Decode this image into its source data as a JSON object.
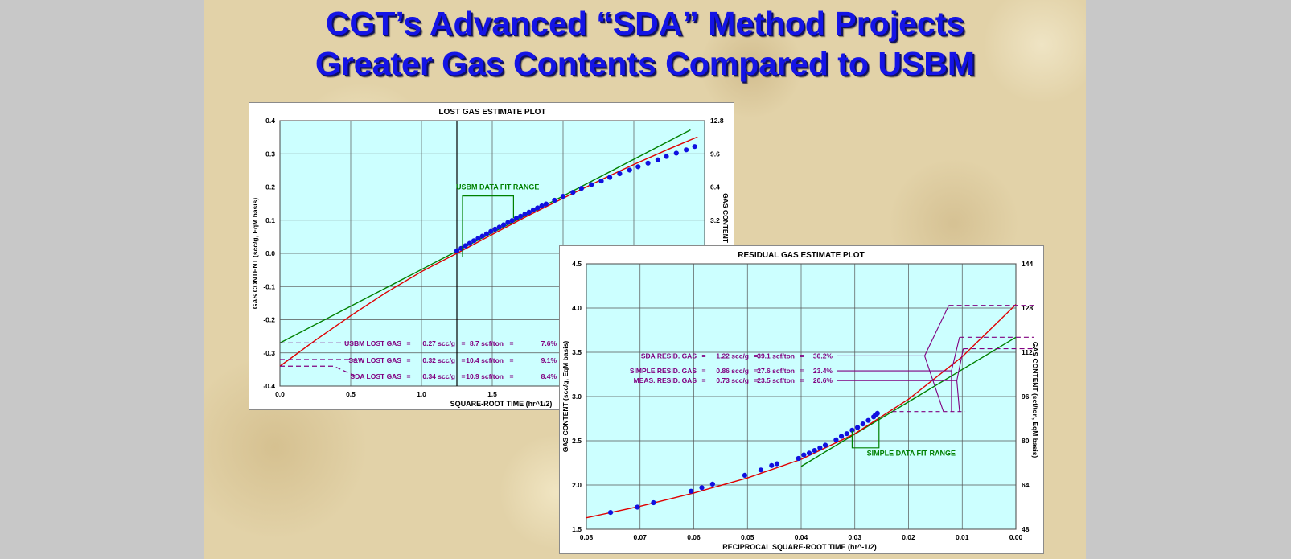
{
  "slide": {
    "title_line1": "CGT’s Advanced “SDA” Method Projects",
    "title_line2": "Greater Gas Contents Compared to USBM"
  },
  "colors": {
    "plot_bg": "#ccffff",
    "data": "#1010e0",
    "red_fit": "#e00000",
    "green_fit": "#008000",
    "annot": "#800080",
    "title": "#1414e6"
  },
  "chart_data": [
    {
      "type": "scatter",
      "title": "LOST GAS ESTIMATE PLOT",
      "xlabel": "SQUARE-ROOT TIME (hr^1/2)",
      "ylabel": "GAS CONTENT (scc/g, EqM basis)",
      "y2label": "GAS CONTENT",
      "xlim": [
        0,
        3.0
      ],
      "ylim": [
        -0.4,
        0.4
      ],
      "y2lim": [
        -12.8,
        12.8
      ],
      "x_ticks": [
        "0.0",
        "0.5",
        "1.0",
        "1.5"
      ],
      "y_ticks": [
        "-0.4",
        "-0.3",
        "-0.2",
        "-0.1",
        "0.0",
        "0.1",
        "0.2",
        "0.3",
        "0.4"
      ],
      "y2_ticks": [
        "3.2",
        "6.4",
        "9.6",
        "12.8"
      ],
      "grid": true,
      "points": {
        "x": [
          1.25,
          1.28,
          1.31,
          1.34,
          1.37,
          1.4,
          1.43,
          1.46,
          1.49,
          1.52,
          1.55,
          1.58,
          1.61,
          1.64,
          1.67,
          1.7,
          1.73,
          1.76,
          1.79,
          1.82,
          1.85,
          1.88,
          1.94,
          2.0,
          2.07,
          2.13,
          2.2,
          2.27,
          2.33,
          2.4,
          2.47,
          2.53,
          2.6,
          2.67,
          2.73,
          2.8,
          2.87,
          2.93
        ],
        "y": [
          0.008,
          0.015,
          0.023,
          0.03,
          0.038,
          0.045,
          0.052,
          0.059,
          0.066,
          0.073,
          0.079,
          0.086,
          0.093,
          0.099,
          0.106,
          0.112,
          0.118,
          0.124,
          0.131,
          0.137,
          0.143,
          0.149,
          0.16,
          0.172,
          0.184,
          0.196,
          0.207,
          0.218,
          0.229,
          0.24,
          0.251,
          0.261,
          0.272,
          0.282,
          0.292,
          0.302,
          0.312,
          0.322
        ]
      },
      "series": [
        {
          "name": "USBM",
          "color": "green",
          "x": [
            0,
            2.9
          ],
          "y": [
            -0.27,
            0.372
          ]
        },
        {
          "name": "SDA",
          "color": "red",
          "x": [
            0.0,
            0.25,
            0.5,
            0.75,
            1.0,
            1.25,
            1.5,
            1.75,
            2.0,
            2.25,
            2.5,
            2.75,
            2.95
          ],
          "y": [
            -0.34,
            -0.262,
            -0.188,
            -0.118,
            -0.055,
            0.0,
            0.057,
            0.113,
            0.166,
            0.218,
            0.268,
            0.315,
            0.351
          ]
        }
      ],
      "annotations": [
        {
          "text": "USBM DATA FIT RANGE",
          "color": "green"
        },
        {
          "label": "USBM LOST GAS",
          "sccg": "0.27 scc/g",
          "scft": "8.7 scf/ton",
          "pct": "7.6%"
        },
        {
          "label": "S&W LOST GAS",
          "sccg": "0.32 scc/g",
          "scft": "10.4 scf/ton",
          "pct": "9.1%"
        },
        {
          "label": "SDA LOST GAS",
          "sccg": "0.34 scc/g",
          "scft": "10.9 scf/ton",
          "pct": "8.4%"
        }
      ]
    },
    {
      "type": "scatter",
      "title": "RESIDUAL GAS ESTIMATE PLOT",
      "xlabel": "RECIPROCAL SQUARE-ROOT TIME (hr^-1/2)",
      "ylabel": "GAS CONTENT (scc/g, EqM basis)",
      "y2label": "GAS CONTENT (scf/ton, EqM basis)",
      "xlim": [
        0.08,
        0.0
      ],
      "ylim": [
        1.5,
        4.5
      ],
      "y2lim": [
        48,
        144
      ],
      "x_ticks": [
        "0.08",
        "0.07",
        "0.06",
        "0.05",
        "0.04",
        "0.03",
        "0.02",
        "0.01",
        "0.00"
      ],
      "y_ticks": [
        "1.5",
        "2.0",
        "2.5",
        "3.0",
        "3.5",
        "4.0",
        "4.5"
      ],
      "y2_ticks": [
        "48",
        "64",
        "80",
        "96",
        "112",
        "128",
        "144"
      ],
      "grid": true,
      "points": {
        "x": [
          0.0755,
          0.0705,
          0.0675,
          0.0605,
          0.0585,
          0.0565,
          0.0505,
          0.0475,
          0.0455,
          0.0445,
          0.0405,
          0.0395,
          0.0385,
          0.0375,
          0.0365,
          0.0355,
          0.0335,
          0.0325,
          0.0315,
          0.0305,
          0.0295,
          0.0285,
          0.0275,
          0.0265,
          0.0262,
          0.0258
        ],
        "y": [
          1.69,
          1.75,
          1.8,
          1.93,
          1.97,
          2.01,
          2.11,
          2.17,
          2.22,
          2.24,
          2.3,
          2.34,
          2.36,
          2.39,
          2.42,
          2.45,
          2.51,
          2.55,
          2.58,
          2.62,
          2.65,
          2.69,
          2.73,
          2.77,
          2.79,
          2.81
        ]
      },
      "series": [
        {
          "name": "SIMPLE",
          "color": "green",
          "x": [
            0.04,
            0.0
          ],
          "y": [
            2.21,
            3.67
          ]
        },
        {
          "name": "SDA",
          "color": "red",
          "x": [
            0.08,
            0.07,
            0.06,
            0.05,
            0.04,
            0.03,
            0.02,
            0.01,
            0.0
          ],
          "y": [
            1.63,
            1.76,
            1.91,
            2.08,
            2.29,
            2.58,
            2.97,
            3.45,
            4.04
          ]
        }
      ],
      "annotations": [
        {
          "text": "SIMPLE DATA FIT RANGE",
          "color": "green"
        },
        {
          "label": "SDA RESID. GAS",
          "sccg": "1.22 scc/g",
          "scft": "39.1 scf/ton",
          "pct": "30.2%"
        },
        {
          "label": "SIMPLE RESID. GAS",
          "sccg": "0.86 scc/g",
          "scft": "27.6 scf/ton",
          "pct": "23.4%"
        },
        {
          "label": "MEAS. RESID. GAS",
          "sccg": "0.73 scc/g",
          "scft": "23.5 scf/ton",
          "pct": "20.6%"
        }
      ]
    }
  ]
}
